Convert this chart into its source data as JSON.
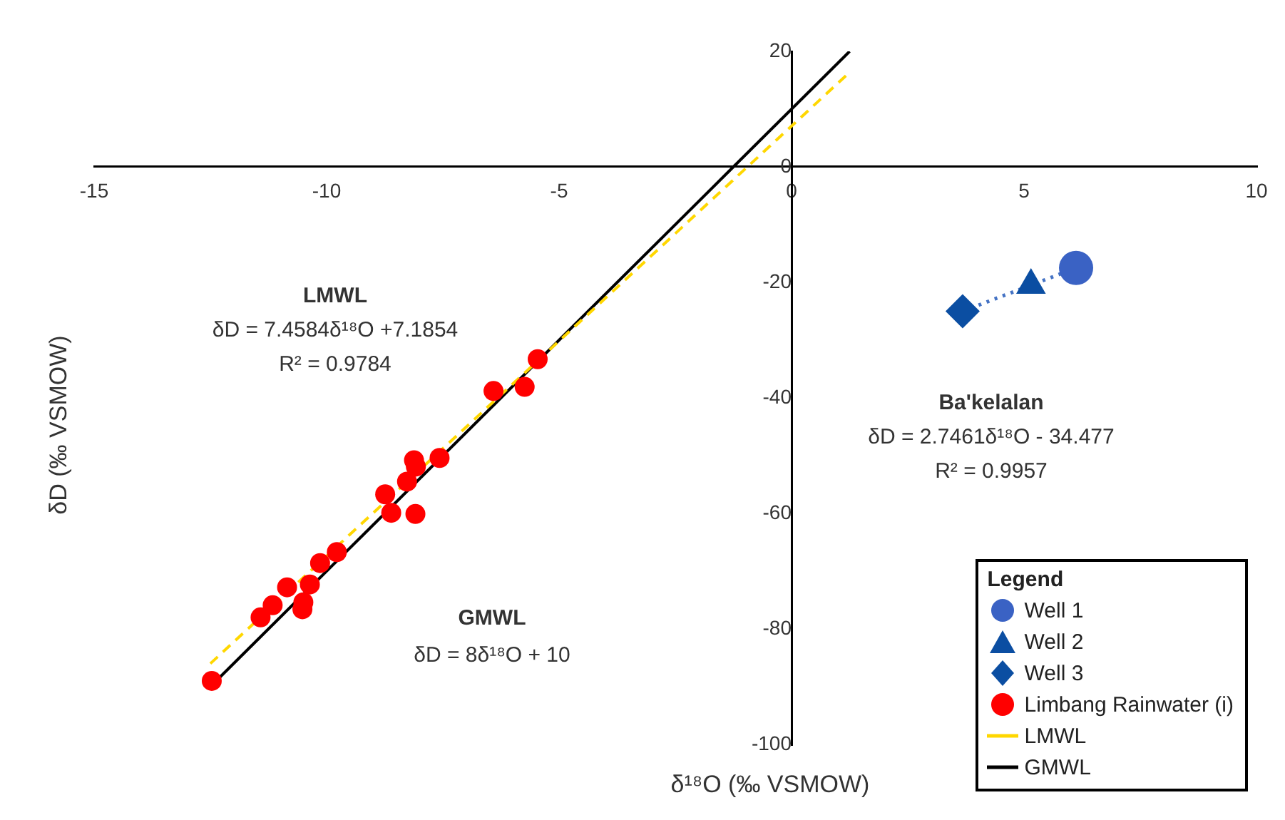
{
  "chart_data": {
    "type": "scatter",
    "xlabel": "δ¹⁸O (‰ VSMOW)",
    "ylabel": "δD (‰ VSMOW)",
    "legend_title": "Legend",
    "xlim": [
      -15,
      10
    ],
    "ylim": [
      -100,
      20
    ],
    "xticks": [
      -15,
      -10,
      -5,
      0,
      5,
      10
    ],
    "yticks": [
      -100,
      -80,
      -60,
      -40,
      -20,
      0,
      20
    ],
    "grid": false,
    "legend": "bottom right",
    "annotations": [
      "LMWL",
      "δD = 7.4584δ¹⁸O +7.1854",
      "R² = 0.9784",
      "GMWL",
      "δD = 8δ¹⁸O + 10",
      "Ba'kelalan",
      "δD = 2.7461δ¹⁸O - 34.477",
      "R² = 0.9957"
    ],
    "series": [
      {
        "name": "Well 1",
        "color": "#3a62c4",
        "marker": "circle",
        "x": [
          6.12
        ],
        "values": [
          -17.5
        ]
      },
      {
        "name": "Well 2",
        "color": "#0b4ea2",
        "marker": "triangle",
        "x": [
          5.15
        ],
        "values": [
          -20.5
        ]
      },
      {
        "name": "Well 3",
        "color": "#0b4ea2",
        "marker": "diamond",
        "x": [
          3.68
        ],
        "values": [
          -25.0
        ]
      },
      {
        "name": "Limbang Rainwater (i)",
        "color": "#ff0000",
        "marker": "circle",
        "x": [
          -5.46,
          -6.41,
          -5.74,
          -7.57,
          -8.12,
          -8.08,
          -8.27,
          -8.74,
          -8.61,
          -8.09,
          -9.78,
          -10.14,
          -10.36,
          -10.85,
          -10.5,
          -10.52,
          -11.16,
          -11.42,
          -12.47
        ],
        "values": [
          -33.3,
          -38.8,
          -38.1,
          -50.4,
          -50.8,
          -51.9,
          -54.5,
          -56.7,
          -59.9,
          -60.1,
          -66.7,
          -68.6,
          -72.3,
          -72.8,
          -75.4,
          -76.6,
          -75.9,
          -78.0,
          -89.0
        ]
      },
      {
        "name": "LMWL",
        "type": "line",
        "color": "#ffd700",
        "line_style": "dashed",
        "marker": "none",
        "x": [
          -12.5,
          1.2
        ],
        "values": [
          -86,
          16
        ]
      },
      {
        "name": "GMWL",
        "type": "line",
        "color": "#000000",
        "line_style": "solid",
        "marker": "none",
        "x": [
          -12.5,
          1.25
        ],
        "values": [
          -90,
          20
        ]
      },
      {
        "type": "line",
        "color": "#4472c4",
        "line_style": "dotted",
        "marker": "none",
        "x": [
          3.68,
          6.12
        ],
        "values": [
          -25.0,
          -17.5
        ]
      }
    ]
  }
}
